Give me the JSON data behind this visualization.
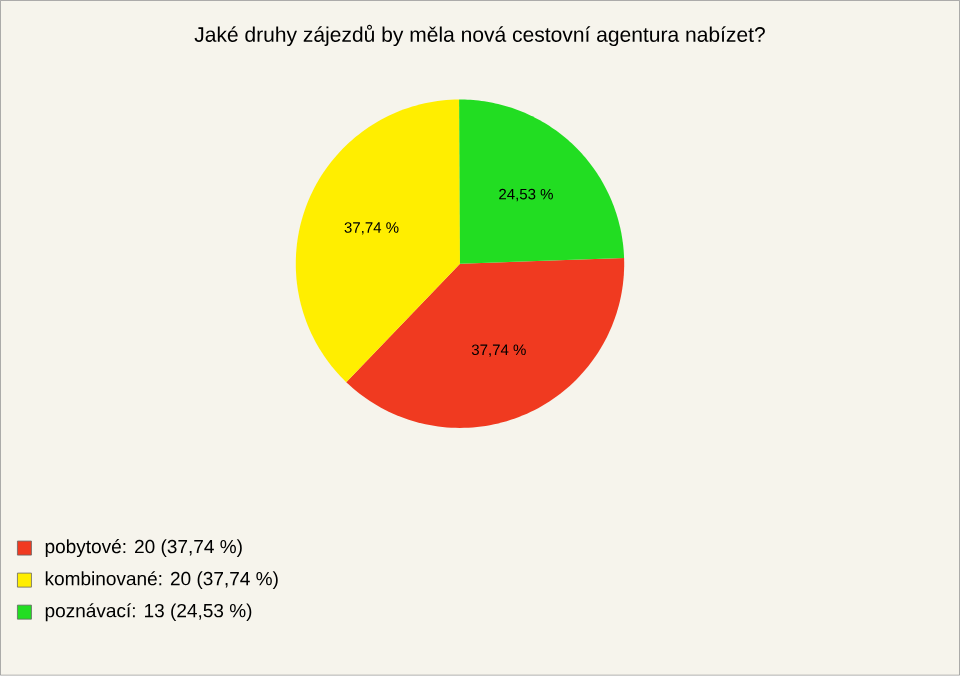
{
  "chart_data": {
    "type": "pie",
    "title": "Jaké druhy zájezdů by měla nová cestovní agentura nabízet?",
    "categories": [
      "pobytové: 20 (37,74 %)",
      "kombinované: 20 (37,74 %)",
      "poznávací: 13 (24,53 %)"
    ],
    "values": [
      37.74,
      37.74,
      24.53
    ],
    "colors": [
      "#f03a20",
      "#ffee00",
      "#22dd22"
    ],
    "value_labels": [
      "37,74 %",
      "37,74 %",
      "24,53 %"
    ],
    "legend": "bottom left"
  }
}
